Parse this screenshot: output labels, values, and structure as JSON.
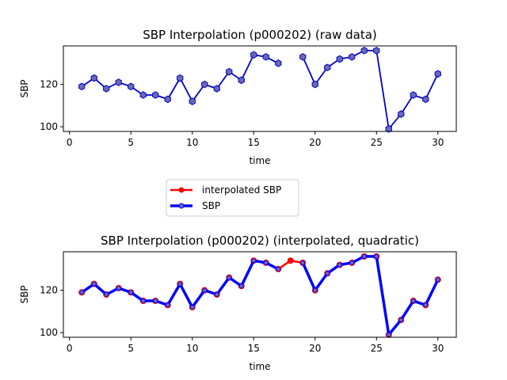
{
  "chart_data": [
    {
      "type": "line",
      "title": "SBP Interpolation (p000202) (raw data)",
      "xlabel": "time",
      "ylabel": "SBP",
      "xlim": [
        -0.5,
        31.5
      ],
      "ylim": [
        97.8,
        138.2
      ],
      "xticks": [
        0,
        5,
        10,
        15,
        20,
        25,
        30
      ],
      "yticks": [
        100,
        120
      ],
      "x": [
        1,
        2,
        3,
        4,
        5,
        6,
        7,
        8,
        9,
        10,
        11,
        12,
        13,
        14,
        15,
        16,
        17,
        18,
        19,
        20,
        21,
        22,
        23,
        24,
        25,
        26,
        27,
        28,
        29,
        30
      ],
      "series": [
        {
          "name": "",
          "color": "#0000cc",
          "marker_fill": "#6a6ab0",
          "values": [
            119,
            123,
            118,
            121,
            119,
            115,
            115,
            113,
            123,
            112,
            120,
            118,
            126,
            122,
            134,
            133,
            130,
            null,
            133,
            120,
            128,
            132,
            133,
            136,
            136,
            99,
            106,
            115,
            113,
            125
          ]
        }
      ]
    },
    {
      "type": "line",
      "title": "SBP Interpolation (p000202) (interpolated, quadratic)",
      "xlabel": "time",
      "ylabel": "SBP",
      "xlim": [
        -0.5,
        31.5
      ],
      "ylim": [
        97.8,
        138.2
      ],
      "xticks": [
        0,
        5,
        10,
        15,
        20,
        25,
        30
      ],
      "yticks": [
        100,
        120
      ],
      "x": [
        1,
        2,
        3,
        4,
        5,
        6,
        7,
        8,
        9,
        10,
        11,
        12,
        13,
        14,
        15,
        16,
        17,
        18,
        19,
        20,
        21,
        22,
        23,
        24,
        25,
        26,
        27,
        28,
        29,
        30
      ],
      "legend": {
        "placement": "between-plots",
        "entries": [
          "interpolated SBP",
          "SBP"
        ]
      },
      "series": [
        {
          "name": "interpolated SBP",
          "color": "#ff0000",
          "values": [
            119,
            123,
            118,
            121,
            119,
            115,
            115,
            113,
            123,
            112,
            120,
            118,
            126,
            122,
            134,
            133,
            130,
            134,
            133,
            120,
            128,
            132,
            133,
            136,
            136,
            99,
            106,
            115,
            113,
            125
          ]
        },
        {
          "name": "SBP",
          "color": "#0000ff",
          "marker_fill": "#6a6ab0",
          "values": [
            119,
            123,
            118,
            121,
            119,
            115,
            115,
            113,
            123,
            112,
            120,
            118,
            126,
            122,
            134,
            133,
            130,
            null,
            133,
            120,
            128,
            132,
            133,
            136,
            136,
            99,
            106,
            115,
            113,
            125
          ]
        }
      ]
    }
  ]
}
